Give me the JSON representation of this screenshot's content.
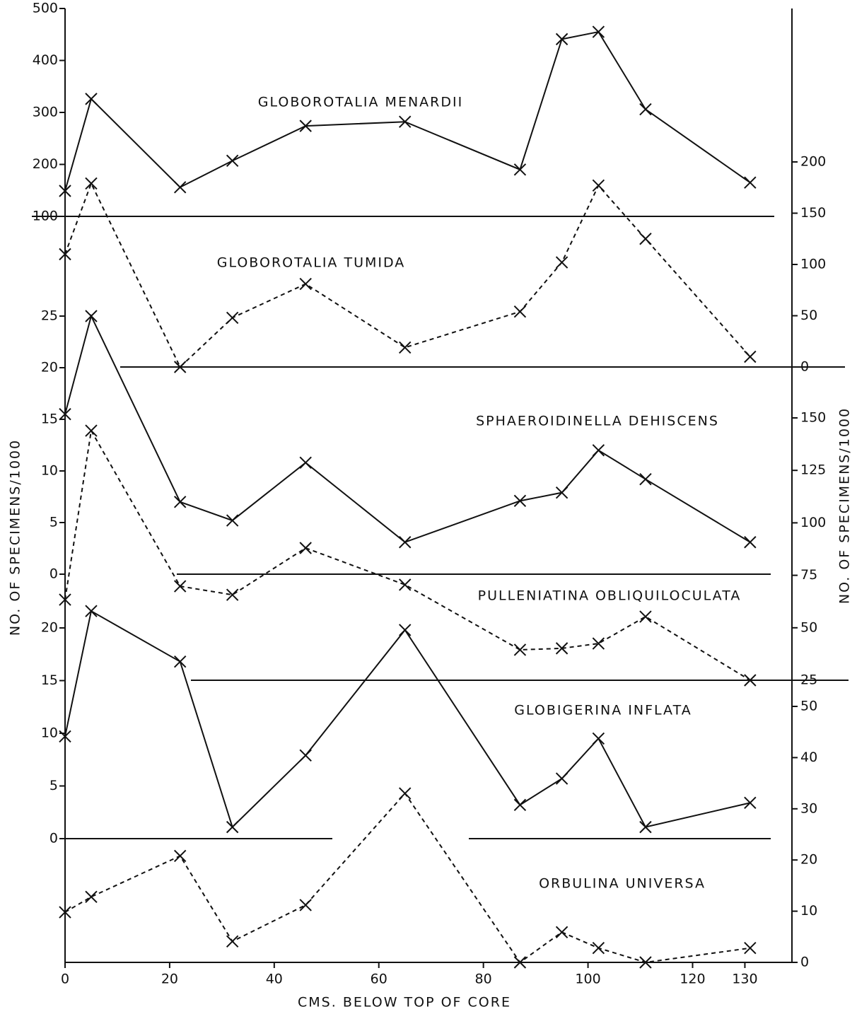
{
  "chart_data": {
    "type": "line",
    "x_label": "CMS. BELOW TOP OF CORE",
    "y_label": "NO. OF SPECIMENS/1000",
    "y2_label": "NO. OF SPECIMENS/1000",
    "xlim": [
      0,
      139
    ],
    "xticks": [
      0,
      20,
      40,
      60,
      80,
      100,
      120,
      130
    ],
    "x": [
      0,
      5,
      22,
      32,
      46,
      65,
      87,
      95,
      102,
      111,
      131
    ],
    "color": "#111111",
    "series": [
      {
        "name": "GLOBOROTALIA MENARDII",
        "axis": "y",
        "style": "solid",
        "ylim": [
          100,
          500
        ],
        "yticks": [
          100,
          200,
          300,
          400,
          500
        ],
        "values": [
          149,
          326,
          156,
          207,
          274,
          282,
          190,
          441,
          455,
          306,
          165
        ]
      },
      {
        "name": "GLOBOROTALIA TUMIDA",
        "axis": "y2",
        "style": "dashed",
        "ylim": [
          0,
          200
        ],
        "yticks": [
          0,
          50,
          100,
          150,
          200
        ],
        "values": [
          110,
          179,
          0,
          48,
          81,
          19,
          54,
          102,
          177,
          125,
          10
        ]
      },
      {
        "name": "SPHAEROIDINELLA DEHISCENS",
        "axis": "y",
        "style": "solid",
        "ylim": [
          0,
          25
        ],
        "yticks": [
          0,
          5,
          10,
          15,
          20,
          25
        ],
        "values": [
          15.5,
          25,
          7,
          5.2,
          10.8,
          3.1,
          7.1,
          7.9,
          12,
          9.2,
          3.1
        ]
      },
      {
        "name": "PULLENIATINA OBLIQUILOCULATA",
        "axis": "y2",
        "style": "dashed",
        "ylim": [
          25,
          150
        ],
        "yticks": [
          25,
          50,
          75,
          100,
          125,
          150
        ],
        "values": [
          63.4,
          143.9,
          69.8,
          65.7,
          88,
          70.5,
          39.5,
          40.2,
          42.5,
          55.3,
          25
        ]
      },
      {
        "name": "GLOBIGERINA INFLATA",
        "axis": "y",
        "style": "solid",
        "ylim": [
          0,
          20
        ],
        "yticks": [
          0,
          5,
          10,
          15,
          20
        ],
        "values": [
          9.7,
          21.6,
          16.8,
          1.1,
          7.9,
          19.8,
          3.2,
          5.7,
          9.5,
          1.1,
          3.4
        ]
      },
      {
        "name": "ORBULINA UNIVERSA",
        "axis": "y2",
        "style": "dashed",
        "ylim": [
          0,
          50
        ],
        "yticks": [
          0,
          10,
          20,
          30,
          40,
          50
        ],
        "values": [
          9.8,
          12.8,
          20.8,
          4.1,
          11.2,
          33,
          0,
          5.9,
          2.8,
          0,
          2.8
        ]
      }
    ]
  }
}
